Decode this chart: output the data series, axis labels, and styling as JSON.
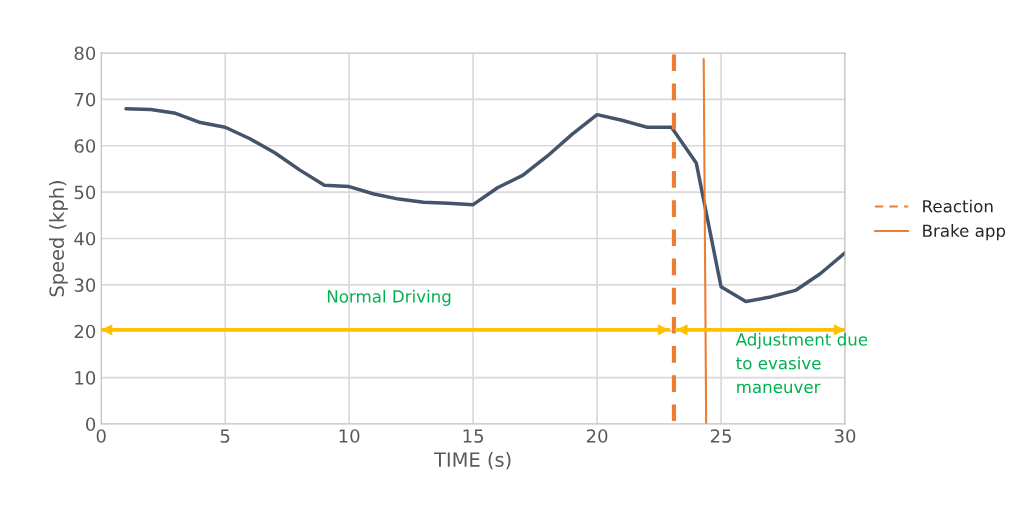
{
  "chart_data": {
    "type": "line",
    "xlabel": "TIME (s)",
    "ylabel": "Speed (kph)",
    "x": [
      1,
      2,
      3,
      4,
      5,
      6,
      7,
      8,
      9,
      10,
      11,
      12,
      13,
      14,
      15,
      16,
      17,
      18,
      19,
      20,
      21,
      22,
      23,
      24,
      25,
      26,
      27,
      28,
      29,
      30
    ],
    "series": [
      {
        "color": "#44546a",
        "values": [
          68,
          67.8,
          67,
          65,
          64,
          61.5,
          58.5,
          54.8,
          51.5,
          51.2,
          49.6,
          48.5,
          47.8,
          47.6,
          47.3,
          51,
          53.6,
          57.8,
          62.5,
          66.7,
          65.5,
          64,
          64,
          56.3,
          29.6,
          26.4,
          27.4,
          28.8,
          32.4,
          36.9
        ]
      },
      {
        "name": "Reaction",
        "color": "#ed7d31",
        "line_style": "dashed",
        "x": [
          23.1,
          23.1
        ],
        "values": [
          79.7,
          0
        ]
      },
      {
        "name": "Brake app",
        "color": "#ed7d31",
        "line_style": "solid",
        "x": [
          24.3,
          24.4
        ],
        "values": [
          78.7,
          0
        ]
      },
      {
        "color": "#ffc000",
        "x": [
          0,
          22.9
        ],
        "values": [
          20.3,
          20.3
        ]
      },
      {
        "color": "#ffc000",
        "x": [
          23.2,
          30
        ],
        "values": [
          20.3,
          20.3
        ]
      }
    ],
    "annotations": [
      "Normal Driving",
      "Adjustment due\nto evasive\nmaneuver"
    ],
    "xlim": [
      0,
      30
    ],
    "xticks": [
      0,
      5,
      10,
      15,
      20,
      25,
      30
    ],
    "ylim": [
      0,
      80
    ],
    "yticks": [
      0,
      10,
      20,
      30,
      40,
      50,
      60,
      70,
      80
    ],
    "grid": true,
    "legend": "right"
  }
}
